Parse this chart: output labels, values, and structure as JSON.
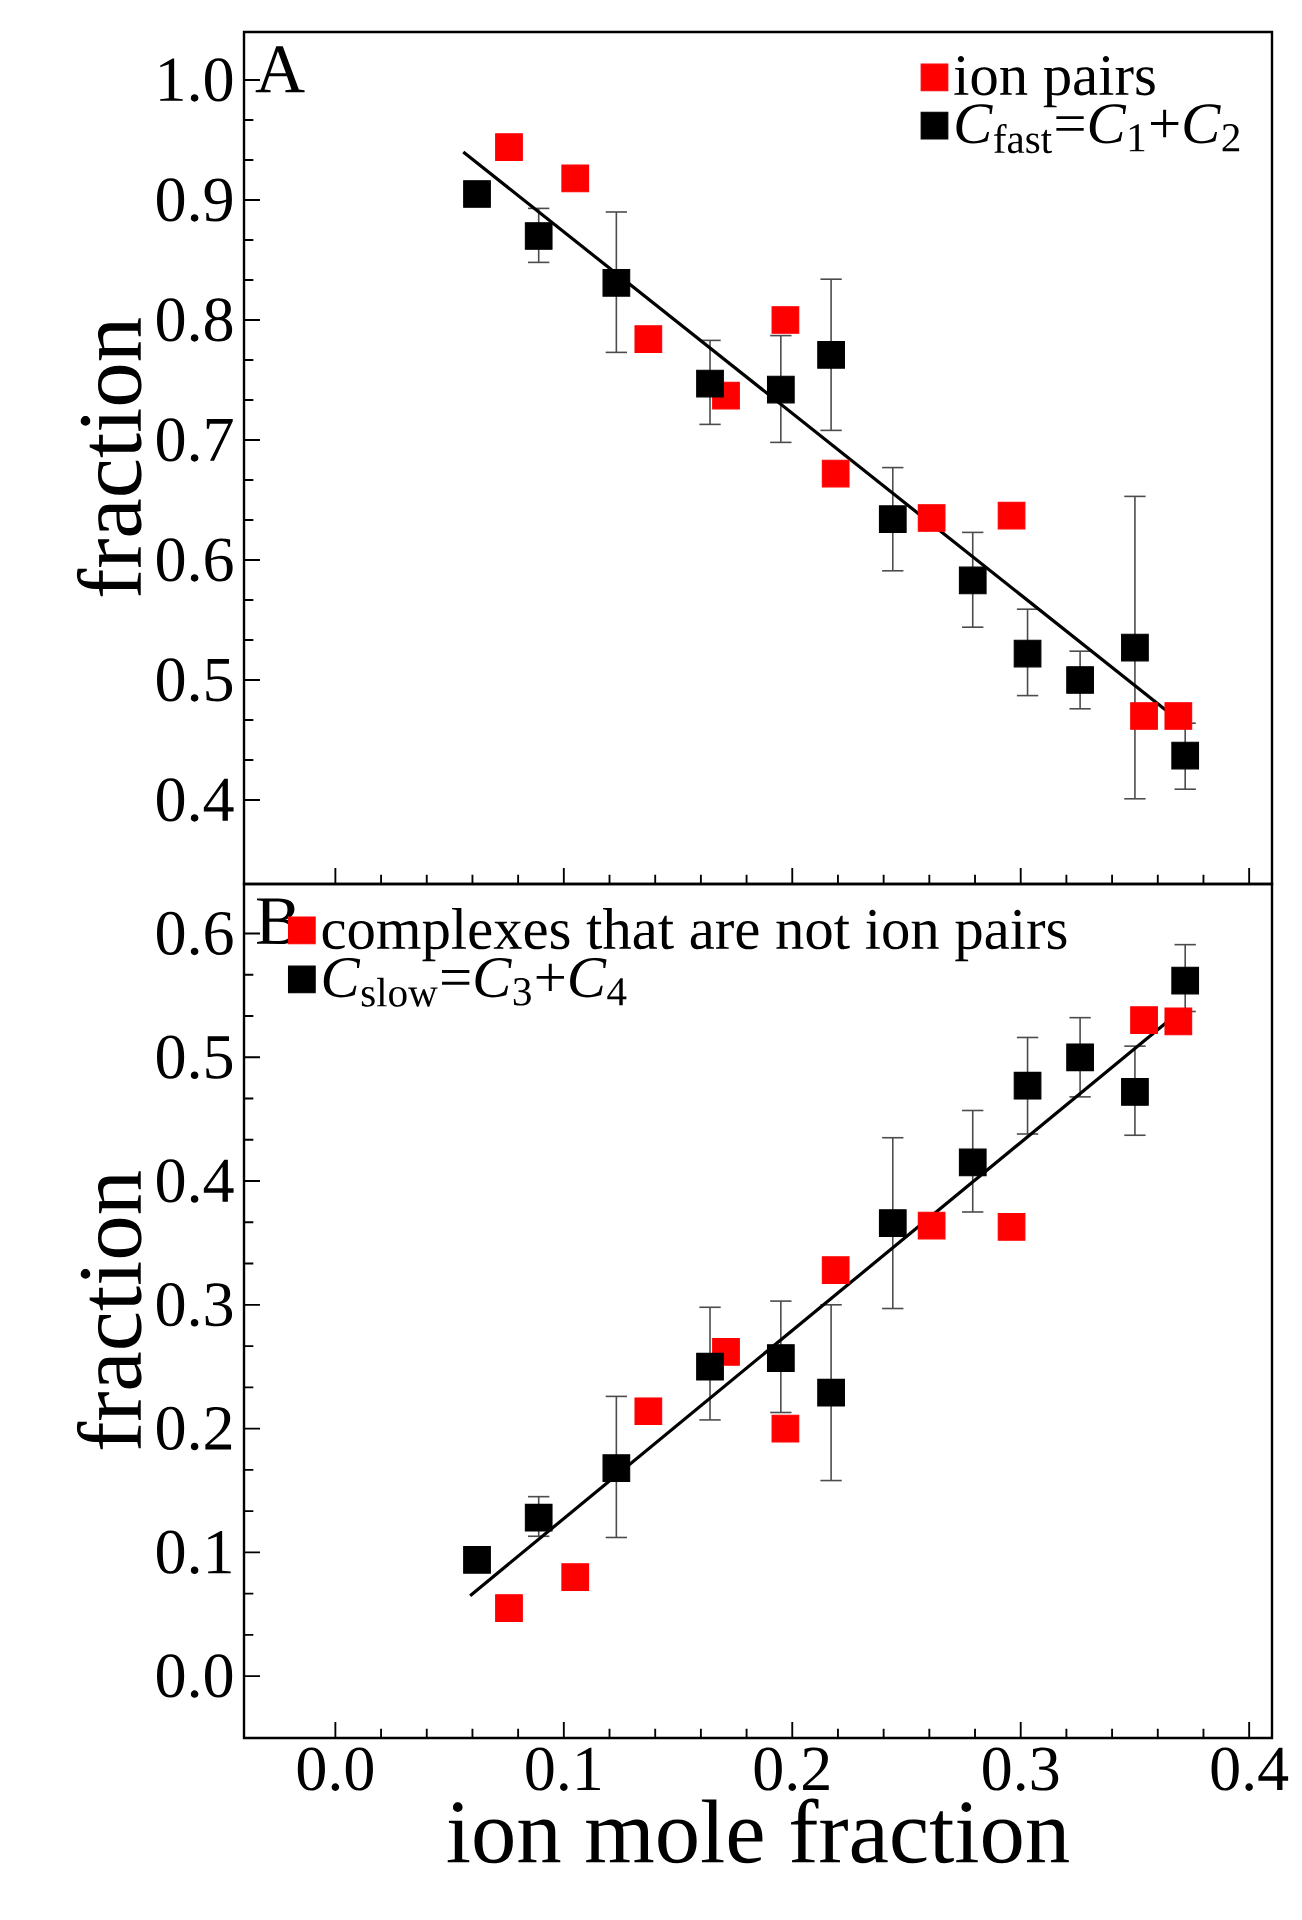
{
  "chart_data": [
    {
      "type": "scatter",
      "annotations": [
        "A"
      ],
      "ylabel": "fraction",
      "xlim": [
        -0.04,
        0.41
      ],
      "ylim": [
        0.33,
        1.04
      ],
      "xticks": [
        0,
        0.1,
        0.2,
        0.3,
        0.4
      ],
      "yticks": [
        {
          "value": 0.4,
          "label": "0.4"
        },
        {
          "value": 0.5,
          "label": "0.5"
        },
        {
          "value": 0.6,
          "label": "0.6"
        },
        {
          "value": 0.7,
          "label": "0.7"
        },
        {
          "value": 0.8,
          "label": "0.8"
        },
        {
          "value": 0.9,
          "label": "0.9"
        },
        {
          "value": 1.0,
          "label": "1.0"
        }
      ],
      "tick_labels": "y",
      "legend": "top right",
      "marker": "square",
      "series": [
        {
          "name": "ion pairs",
          "color": "#ff0000",
          "x": [
            0.076,
            0.105,
            0.137,
            0.171,
            0.197,
            0.219,
            0.261,
            0.296,
            0.354,
            0.369
          ],
          "values": [
            0.944,
            0.918,
            0.784,
            0.737,
            0.8,
            0.672,
            0.635,
            0.637,
            0.47,
            0.47
          ]
        },
        {
          "name": "*C*$_{fast}$=*C*$_{1}$+*C*$_{2}$",
          "color": "#000000",
          "x": [
            0.062,
            0.089,
            0.123,
            0.164,
            0.195,
            0.217,
            0.244,
            0.279,
            0.303,
            0.326,
            0.35,
            0.372
          ],
          "values": [
            0.905,
            0.87,
            0.831,
            0.747,
            0.742,
            0.771,
            0.634,
            0.583,
            0.522,
            0.5,
            0.527,
            0.437
          ],
          "errors": [
            null,
            [
              0.848,
              0.893
            ],
            [
              0.773,
              0.89
            ],
            [
              0.713,
              0.783
            ],
            [
              0.698,
              0.787
            ],
            [
              0.708,
              0.834
            ],
            [
              0.591,
              0.677
            ],
            [
              0.544,
              0.623
            ],
            [
              0.487,
              0.559
            ],
            [
              0.476,
              0.524
            ],
            [
              0.401,
              0.653
            ],
            [
              0.409,
              0.464
            ]
          ]
        },
        {
          "type": "line",
          "color": "#000000",
          "marker": "none",
          "x": [
            0.056,
            0.372
          ],
          "values": [
            0.94,
            0.462
          ]
        }
      ]
    },
    {
      "type": "scatter",
      "annotations": [
        "B"
      ],
      "xlabel": "ion mole fraction",
      "ylabel": "fraction",
      "xlim": [
        -0.04,
        0.41
      ],
      "ylim": [
        -0.05,
        0.64
      ],
      "xticks": [
        {
          "value": 0.0,
          "label": "0.0"
        },
        {
          "value": 0.1,
          "label": "0.1"
        },
        {
          "value": 0.2,
          "label": "0.2"
        },
        {
          "value": 0.3,
          "label": "0.3"
        },
        {
          "value": 0.4,
          "label": "0.4"
        }
      ],
      "yticks": [
        {
          "value": 0.0,
          "label": "0.0"
        },
        {
          "value": 0.1,
          "label": "0.1"
        },
        {
          "value": 0.2,
          "label": "0.2"
        },
        {
          "value": 0.3,
          "label": "0.3"
        },
        {
          "value": 0.4,
          "label": "0.4"
        },
        {
          "value": 0.5,
          "label": "0.5"
        },
        {
          "value": 0.6,
          "label": "0.6"
        }
      ],
      "legend": "top left",
      "marker": "square",
      "series": [
        {
          "name": "complexes that are not ion pairs",
          "color": "#ff0000",
          "x": [
            0.076,
            0.105,
            0.137,
            0.171,
            0.197,
            0.219,
            0.261,
            0.296,
            0.354,
            0.369
          ],
          "values": [
            0.055,
            0.08,
            0.214,
            0.262,
            0.2,
            0.328,
            0.364,
            0.363,
            0.53,
            0.529
          ]
        },
        {
          "name": "*C*$_{slow}$=*C*$_{3}$+*C*$_{4}$",
          "color": "#000000",
          "x": [
            0.062,
            0.089,
            0.123,
            0.164,
            0.195,
            0.217,
            0.244,
            0.279,
            0.303,
            0.326,
            0.35,
            0.372
          ],
          "values": [
            0.094,
            0.128,
            0.168,
            0.25,
            0.257,
            0.229,
            0.366,
            0.415,
            0.477,
            0.5,
            0.472,
            0.562
          ],
          "errors": [
            null,
            [
              0.113,
              0.145
            ],
            [
              0.112,
              0.226
            ],
            [
              0.207,
              0.298
            ],
            [
              0.213,
              0.303
            ],
            [
              0.158,
              0.3
            ],
            [
              0.297,
              0.435
            ],
            [
              0.375,
              0.457
            ],
            [
              0.438,
              0.516
            ],
            [
              0.468,
              0.532
            ],
            [
              0.437,
              0.509
            ],
            [
              0.537,
              0.591
            ]
          ]
        },
        {
          "type": "line",
          "color": "#000000",
          "marker": "none",
          "x": [
            0.059,
            0.369
          ],
          "values": [
            0.065,
            0.536
          ]
        }
      ]
    }
  ]
}
